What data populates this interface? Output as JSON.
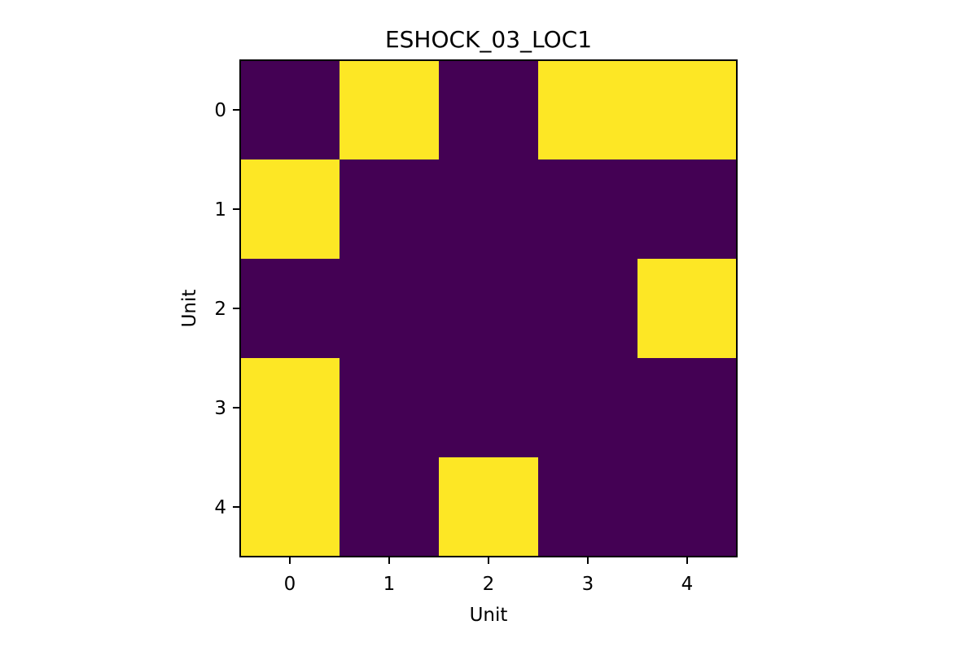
{
  "chart_data": {
    "type": "heatmap",
    "title": "ESHOCK_03_LOC1",
    "xlabel": "Unit",
    "ylabel": "Unit",
    "x_ticks": [
      "0",
      "1",
      "2",
      "3",
      "4"
    ],
    "y_ticks": [
      "0",
      "1",
      "2",
      "3",
      "4"
    ],
    "xlim": [
      -0.5,
      4.5
    ],
    "ylim": [
      4.5,
      -0.5
    ],
    "values": [
      [
        0,
        1,
        0,
        1,
        1
      ],
      [
        1,
        0,
        0,
        0,
        0
      ],
      [
        0,
        0,
        0,
        0,
        1
      ],
      [
        1,
        0,
        0,
        0,
        0
      ],
      [
        1,
        0,
        1,
        0,
        0
      ]
    ],
    "colormap": {
      "low": "#440154",
      "high": "#fde725"
    },
    "grid": false,
    "legend": "none"
  }
}
